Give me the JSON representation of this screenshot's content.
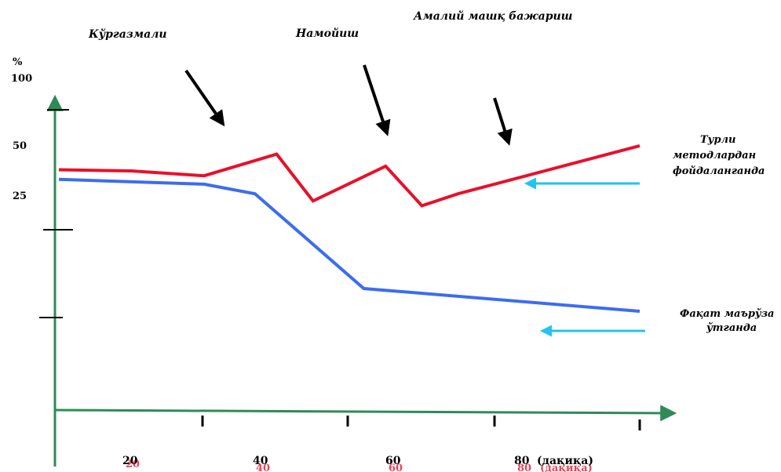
{
  "chart_data": {
    "type": "line",
    "unit_label": "%",
    "y_tick_labels": [
      "100",
      "50",
      "25"
    ],
    "x_tick_labels": [
      "20",
      "40",
      "60",
      "80"
    ],
    "x_unit_label": "(дақиқа)",
    "phase_labels": [
      "Кўргазмали",
      "Намойиш",
      "Амалий машқ бажариш"
    ],
    "series": [
      {
        "name": "Турли методлардан фойдаланганда",
        "name_lines": [
          "Турли",
          "методлардан",
          "фойдаланганда"
        ],
        "color": "#e8102a",
        "x": [
          0,
          10,
          20,
          30,
          35,
          45,
          50,
          55,
          80
        ],
        "y": [
          50,
          49,
          45,
          63,
          24,
          53,
          20,
          30,
          70
        ]
      },
      {
        "name": "Фақат маърўза ўтганда",
        "name_lines": [
          "Фақат маърўза",
          "ўтганда"
        ],
        "color": "#3d6cf0",
        "x": [
          0,
          20,
          27,
          42,
          80
        ],
        "y": [
          42,
          38,
          30,
          -49,
          -68
        ]
      }
    ],
    "colors": {
      "axis": "#2e8b57",
      "arrow_pointer": "#000000",
      "legend_arrow": "#22c3ee"
    }
  }
}
